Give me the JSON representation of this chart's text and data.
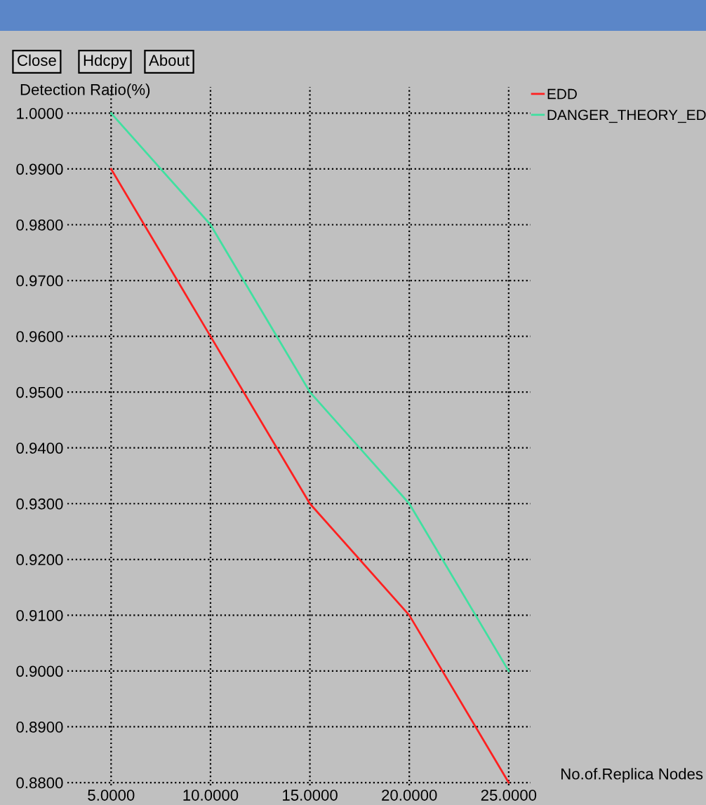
{
  "chart_data": {
    "type": "line",
    "ylabel": "Detection Ratio(%)",
    "xlabel": "No.of.Replica Nodes",
    "annotations": [
      "Close",
      "Hdcpy",
      "About"
    ],
    "x": [
      5,
      10,
      15,
      20,
      25
    ],
    "series": [
      {
        "name": "EDD",
        "color": "#ff2020",
        "values": [
          0.99,
          0.96,
          0.93,
          0.91,
          0.88
        ]
      },
      {
        "name": "DANGER_THEORY_ED",
        "color": "#40e0a0",
        "values": [
          1.0,
          0.98,
          0.95,
          0.93,
          0.9
        ]
      }
    ],
    "xlim": [
      2.8,
      26.1
    ],
    "ylim": [
      0.8795,
      1.0047
    ],
    "xticks": [
      {
        "value": 5,
        "label": "5.0000"
      },
      {
        "value": 10,
        "label": "10.0000"
      },
      {
        "value": 15,
        "label": "15.0000"
      },
      {
        "value": 20,
        "label": "20.0000"
      },
      {
        "value": 25,
        "label": "25.0000"
      }
    ],
    "yticks": [
      {
        "value": 0.88,
        "label": "0.8800"
      },
      {
        "value": 0.89,
        "label": "0.8900"
      },
      {
        "value": 0.9,
        "label": "0.9000"
      },
      {
        "value": 0.91,
        "label": "0.9100"
      },
      {
        "value": 0.92,
        "label": "0.9200"
      },
      {
        "value": 0.93,
        "label": "0.9300"
      },
      {
        "value": 0.94,
        "label": "0.9400"
      },
      {
        "value": 0.95,
        "label": "0.9500"
      },
      {
        "value": 0.96,
        "label": "0.9600"
      },
      {
        "value": 0.97,
        "label": "0.9700"
      },
      {
        "value": 0.98,
        "label": "0.9800"
      },
      {
        "value": 0.99,
        "label": "0.9900"
      },
      {
        "value": 1.0,
        "label": "1.0000"
      }
    ],
    "grid": true,
    "legend": "top right",
    "marker": "none",
    "line_style": "solid"
  }
}
